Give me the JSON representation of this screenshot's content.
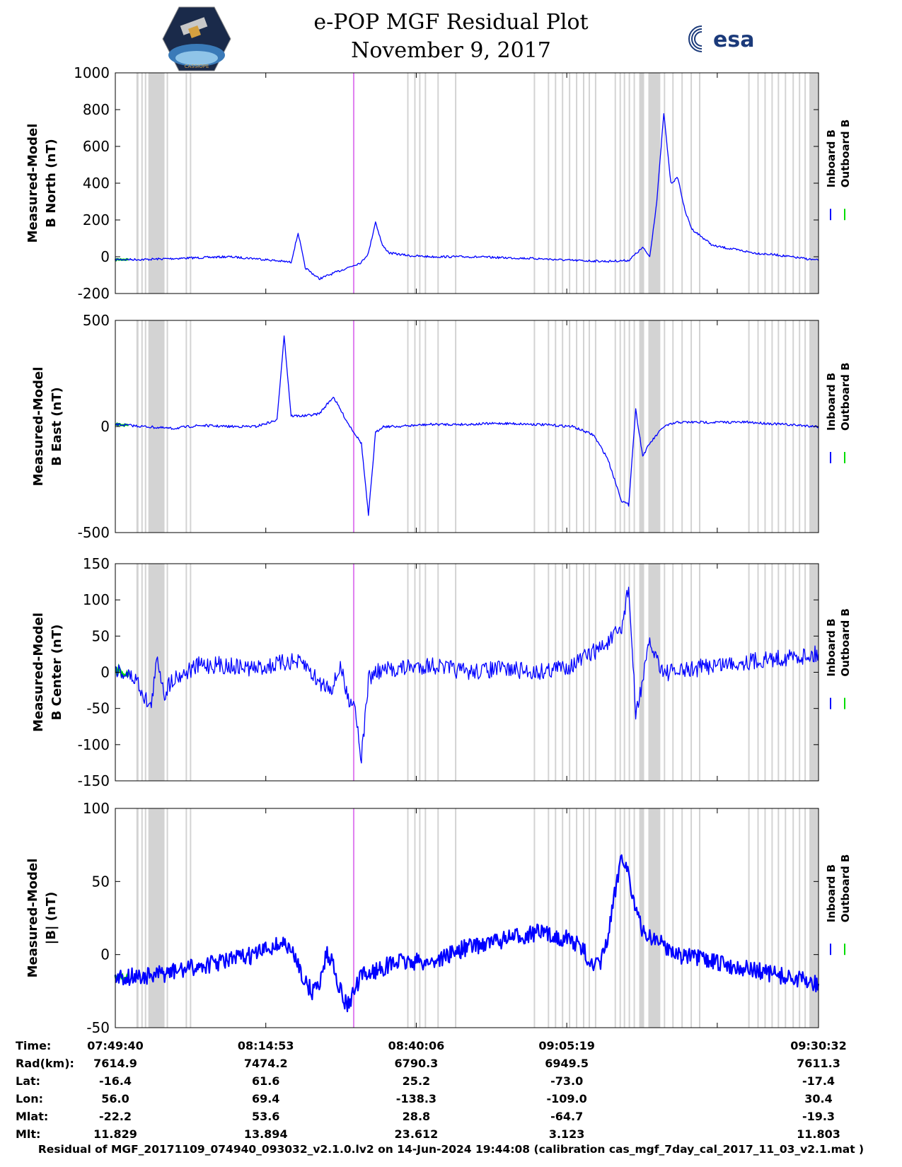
{
  "header": {
    "title": "e-POP MGF Residual Plot",
    "subtitle": "November 9, 2017",
    "left_logo_text": "CASSIOPE",
    "right_logo_text": "esa"
  },
  "colors": {
    "inboard": "#0000ff",
    "outboard": "#00dd00",
    "shade": "#d3d3d3",
    "marker": "#e080f0"
  },
  "chart_data": [
    {
      "type": "line",
      "ylabel": [
        "Measured-Model",
        "B North (nT)"
      ],
      "ylim": [
        -200,
        1000
      ],
      "yticks": [
        -200,
        0,
        200,
        400,
        600,
        800,
        1000
      ],
      "legend": [
        "Inboard B",
        "Outboard B"
      ],
      "series": [
        {
          "name": "Inboard B",
          "x": [
            0,
            4,
            8,
            12,
            16,
            20,
            25,
            26,
            27,
            29,
            31,
            33,
            35,
            36,
            37,
            38,
            39,
            42,
            45,
            50,
            55,
            60,
            65,
            70,
            73,
            75,
            76,
            77,
            78,
            79,
            80,
            81,
            82,
            83,
            85,
            88,
            91,
            94,
            97,
            100
          ],
          "y": [
            -15,
            -15,
            -10,
            -5,
            0,
            -10,
            -30,
            130,
            -60,
            -120,
            -90,
            -60,
            -30,
            20,
            190,
            60,
            20,
            5,
            0,
            0,
            -5,
            -10,
            -20,
            -25,
            -20,
            50,
            0,
            300,
            780,
            400,
            430,
            250,
            150,
            120,
            60,
            40,
            20,
            10,
            -5,
            -20
          ]
        }
      ]
    },
    {
      "type": "line",
      "ylabel": [
        "Measured-Model",
        "B East (nT)"
      ],
      "ylim": [
        -500,
        500
      ],
      "yticks": [
        -500,
        0,
        500
      ],
      "legend": [
        "Inboard B",
        "Outboard B"
      ],
      "series": [
        {
          "name": "Inboard B",
          "x": [
            0,
            4,
            8,
            12,
            16,
            20,
            23,
            24,
            25,
            27,
            29,
            31,
            33,
            35,
            36,
            37,
            38,
            40,
            45,
            50,
            55,
            60,
            65,
            68,
            70,
            72,
            73,
            74,
            75,
            76,
            78,
            80,
            85,
            90,
            95,
            100
          ],
          "y": [
            10,
            0,
            -10,
            5,
            0,
            0,
            30,
            430,
            50,
            50,
            60,
            140,
            20,
            -80,
            -420,
            -30,
            0,
            0,
            10,
            10,
            15,
            10,
            0,
            -40,
            -150,
            -350,
            -370,
            80,
            -140,
            -80,
            0,
            20,
            20,
            20,
            10,
            0
          ]
        }
      ]
    },
    {
      "type": "line",
      "ylabel": [
        "Measured-Model",
        "B Center (nT)"
      ],
      "ylim": [
        -150,
        150
      ],
      "yticks": [
        -150,
        -100,
        -50,
        0,
        50,
        100,
        150
      ],
      "legend": [
        "Inboard B",
        "Outboard B"
      ],
      "series": [
        {
          "name": "Inboard B",
          "x": [
            0,
            3,
            5,
            6,
            7,
            8,
            10,
            12,
            15,
            20,
            25,
            27,
            29,
            31,
            32,
            33,
            34,
            35,
            36,
            37,
            40,
            45,
            50,
            55,
            60,
            65,
            70,
            72,
            73,
            74,
            75,
            76,
            78,
            80,
            85,
            90,
            95,
            100
          ],
          "y": [
            5,
            -10,
            -50,
            20,
            -30,
            -10,
            0,
            10,
            10,
            5,
            15,
            10,
            -15,
            -20,
            10,
            -35,
            -40,
            -120,
            -10,
            0,
            5,
            10,
            0,
            5,
            0,
            10,
            40,
            60,
            120,
            -60,
            -10,
            40,
            0,
            0,
            10,
            15,
            20,
            25
          ]
        }
      ]
    },
    {
      "type": "line",
      "ylabel": [
        "Measured-Model",
        "|B| (nT)"
      ],
      "ylim": [
        -50,
        100
      ],
      "yticks": [
        -50,
        0,
        50,
        100
      ],
      "legend": [
        "Inboard B",
        "Outboard B"
      ],
      "series": [
        {
          "name": "Inboard B",
          "x": [
            0,
            5,
            10,
            15,
            20,
            22,
            24,
            26,
            27,
            28,
            29,
            30,
            31,
            32,
            33,
            35,
            40,
            45,
            50,
            55,
            60,
            65,
            67,
            68,
            69,
            70,
            71,
            72,
            73,
            74,
            75,
            77,
            80,
            85,
            90,
            95,
            100
          ],
          "y": [
            -15,
            -15,
            -10,
            -5,
            0,
            5,
            8,
            -5,
            -20,
            -25,
            -20,
            0,
            -5,
            -25,
            -35,
            -15,
            -5,
            -5,
            5,
            10,
            15,
            10,
            0,
            -10,
            -5,
            10,
            40,
            70,
            55,
            30,
            15,
            10,
            0,
            -5,
            -10,
            -15,
            -20
          ]
        }
      ]
    }
  ],
  "gray_bands": [
    [
      3.0,
      3.3
    ],
    [
      3.7,
      3.9
    ],
    [
      4.2,
      4.4
    ],
    [
      4.7,
      7.0
    ],
    [
      7.3,
      7.5
    ],
    [
      10.0,
      10.2
    ],
    [
      10.6,
      10.8
    ],
    [
      41.5,
      41.7
    ],
    [
      42.5,
      42.7
    ],
    [
      43.2,
      43.4
    ],
    [
      44.0,
      44.2
    ],
    [
      45.8,
      46.0
    ],
    [
      48.3,
      48.5
    ],
    [
      59.5,
      59.7
    ],
    [
      61.5,
      61.7
    ],
    [
      62.5,
      62.7
    ],
    [
      63.5,
      63.7
    ],
    [
      64.5,
      64.7
    ],
    [
      65.5,
      65.7
    ],
    [
      66.5,
      66.7
    ],
    [
      67.3,
      67.5
    ],
    [
      68.2,
      68.4
    ],
    [
      71.0,
      71.2
    ],
    [
      71.7,
      71.9
    ],
    [
      72.3,
      72.5
    ],
    [
      73.0,
      73.2
    ],
    [
      73.7,
      73.9
    ],
    [
      74.5,
      75.2
    ],
    [
      75.8,
      77.5
    ],
    [
      78.0,
      78.2
    ],
    [
      79.2,
      79.4
    ],
    [
      80.5,
      80.7
    ],
    [
      81.8,
      82.0
    ],
    [
      83.0,
      83.2
    ],
    [
      90.0,
      90.2
    ],
    [
      91.3,
      91.5
    ],
    [
      92.3,
      92.5
    ],
    [
      93.3,
      93.5
    ],
    [
      94.2,
      94.4
    ],
    [
      95.2,
      95.4
    ],
    [
      96.3,
      96.5
    ],
    [
      97.2,
      97.4
    ],
    [
      98.0,
      98.2
    ],
    [
      98.7,
      100.0
    ]
  ],
  "marker_x": 33.9,
  "tick_positions": [
    0,
    21.4,
    42.8,
    64.2,
    85.6,
    100
  ],
  "table": {
    "labels": [
      "Time:",
      "Rad(km):",
      "Lat:",
      "Lon:",
      "Mlat:",
      "Mlt:"
    ],
    "columns": [
      [
        "07:49:40",
        "7614.9",
        "-16.4",
        "56.0",
        "-22.2",
        "11.829"
      ],
      [
        "08:14:53",
        "7474.2",
        "61.6",
        "69.4",
        "53.6",
        "13.894"
      ],
      [
        "08:40:06",
        "6790.3",
        "25.2",
        "-138.3",
        "28.8",
        "23.612"
      ],
      [
        "09:05:19",
        "6949.5",
        "-73.0",
        "-109.0",
        "-64.7",
        "3.123"
      ],
      [
        "09:30:32",
        "7611.3",
        "-17.4",
        "30.4",
        "-19.3",
        "11.803"
      ]
    ]
  },
  "footer": "Residual of MGF_20171109_074940_093032_v2.1.0.lv2 on 14-Jun-2024 19:44:08 (calibration cas_mgf_7day_cal_2017_11_03_v2.1.mat )"
}
